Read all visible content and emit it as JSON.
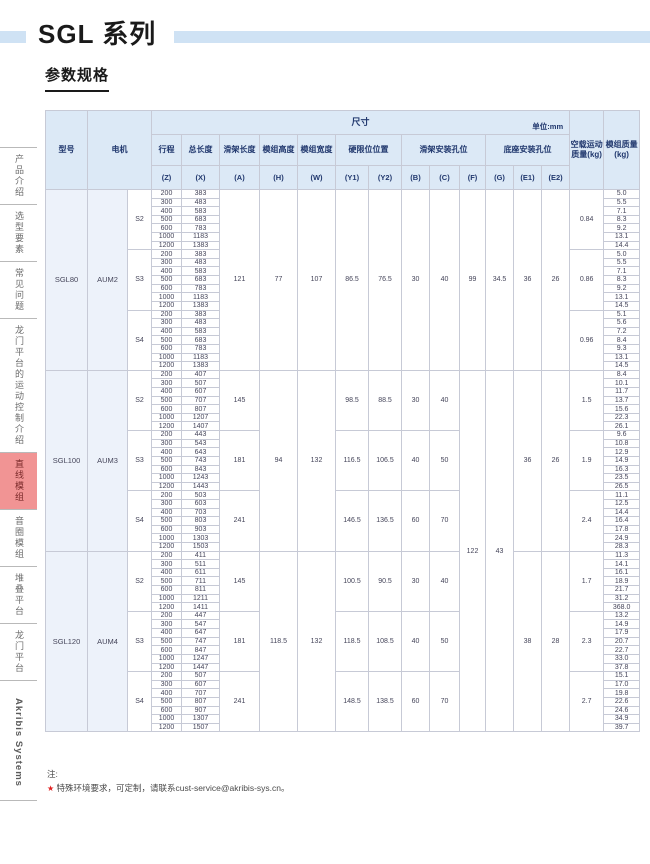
{
  "page": {
    "series_title": "SGL 系列",
    "section_title": "参数规格",
    "brand_vertical": "Akribis  Systems",
    "note_label": "注:",
    "note_star": "★",
    "note_text": " 特殊环境要求，可定制，请联系cust-service@akribis-sys.cn。"
  },
  "sidebar": {
    "items": [
      {
        "label": "产品介绍",
        "active": false
      },
      {
        "label": "选型要素",
        "active": false
      },
      {
        "label": "常见问题",
        "active": false
      },
      {
        "label": "龙门平台的运动控制介绍",
        "active": false
      },
      {
        "label": "直线模组",
        "active": true
      },
      {
        "label": "音圈模组",
        "active": false
      },
      {
        "label": "堆叠平台",
        "active": false
      },
      {
        "label": "龙门平台",
        "active": false
      }
    ]
  },
  "table": {
    "header": {
      "model": "型号",
      "motor": "电机",
      "dims_title": "尺寸",
      "unit": "单位:mm",
      "groups": [
        {
          "label": "行程"
        },
        {
          "label": "总长度"
        },
        {
          "label": "滑架长度"
        },
        {
          "label": "模组高度"
        },
        {
          "label": "模组宽度"
        },
        {
          "label": "硬限位位置"
        },
        {
          "label": "滑架安装孔位"
        },
        {
          "label": "底座安装孔位"
        }
      ],
      "subs": [
        "(Z)",
        "(X)",
        "(A)",
        "(H)",
        "(W)",
        "(Y1)",
        "(Y2)",
        "(B)",
        "(C)",
        "(F)",
        "(G)",
        "(E1)",
        "(E2)"
      ],
      "no_load_label": "空载运动质量(kg)",
      "module_mass_label": "模组质量(kg)"
    },
    "strokes": [
      200,
      300,
      400,
      500,
      600,
      1000,
      1200
    ],
    "sections": [
      {
        "model": "SGL80",
        "motor": "AUM2",
        "dims": {
          "A": {
            "rows": 21,
            "v": "121"
          },
          "H": {
            "rows": 21,
            "v": "77"
          },
          "W": {
            "rows": 21,
            "v": "107"
          },
          "Y1": {
            "rows": 21,
            "v": "86.5"
          },
          "Y2": {
            "rows": 21,
            "v": "76.5"
          },
          "B": {
            "rows": 21,
            "v": "30"
          },
          "C": {
            "rows": 21,
            "v": "40"
          },
          "F": {
            "rows": 21,
            "v": "99"
          },
          "G": {
            "rows": 21,
            "v": "34.5"
          },
          "E1": {
            "rows": 21,
            "v": "36"
          },
          "E2": {
            "rows": 21,
            "v": "26"
          }
        },
        "subs": [
          {
            "s": "S2",
            "X": [
              383,
              483,
              583,
              683,
              783,
              1183,
              1383
            ],
            "no_load": "0.84",
            "mass": [
              "5.0",
              "5.5",
              "7.1",
              "8.3",
              "9.2",
              "13.1",
              "14.4"
            ]
          },
          {
            "s": "S3",
            "X": [
              383,
              483,
              583,
              683,
              783,
              1183,
              1383
            ],
            "no_load": "0.86",
            "mass": [
              "5.0",
              "5.5",
              "7.1",
              "8.3",
              "9.2",
              "13.1",
              "14.5"
            ]
          },
          {
            "s": "S4",
            "X": [
              383,
              483,
              583,
              683,
              783,
              1183,
              1383
            ],
            "no_load": "0.96",
            "mass": [
              "5.1",
              "5.6",
              "7.2",
              "8.4",
              "9.3",
              "13.1",
              "14.5"
            ]
          }
        ]
      },
      {
        "model": "SGL100",
        "motor": "AUM3",
        "dims": {
          "A": {
            "rows": 7,
            "v": [
              "145",
              "181",
              "241"
            ]
          },
          "H": {
            "rows": 21,
            "v": "94"
          },
          "W": {
            "rows": 21,
            "v": "132"
          },
          "Y1": {
            "rows": 7,
            "v": [
              "98.5",
              "116.5",
              "146.5"
            ]
          },
          "Y2": {
            "rows": 7,
            "v": [
              "88.5",
              "106.5",
              "136.5"
            ]
          },
          "B": {
            "rows": 7,
            "v": [
              "30",
              "40",
              "60"
            ]
          },
          "C": {
            "rows": 7,
            "v": [
              "40",
              "50",
              "70"
            ]
          },
          "F": {
            "rows": 42,
            "v": "122"
          },
          "G": {
            "rows": 42,
            "v": "43"
          },
          "E1": {
            "rows": 21,
            "v": "36"
          },
          "E2": {
            "rows": 21,
            "v": "26"
          }
        },
        "subs": [
          {
            "s": "S2",
            "X": [
              407,
              507,
              607,
              707,
              807,
              1207,
              1407
            ],
            "no_load": "1.5",
            "mass": [
              "8.4",
              "10.1",
              "11.7",
              "13.7",
              "15.6",
              "22.3",
              "26.1"
            ]
          },
          {
            "s": "S3",
            "X": [
              443,
              543,
              643,
              743,
              843,
              1243,
              1443
            ],
            "no_load": "1.9",
            "mass": [
              "9.6",
              "10.8",
              "12.9",
              "14.9",
              "16.3",
              "23.5",
              "26.5"
            ]
          },
          {
            "s": "S4",
            "X": [
              503,
              603,
              703,
              803,
              903,
              1303,
              1503
            ],
            "no_load": "2.4",
            "mass": [
              "11.1",
              "12.5",
              "14.4",
              "16.4",
              "17.8",
              "24.9",
              "28.3"
            ]
          }
        ]
      },
      {
        "model": "SGL120",
        "motor": "AUM4",
        "dims": {
          "A": {
            "rows": 7,
            "v": [
              "145",
              "181",
              "241"
            ]
          },
          "H": {
            "rows": 21,
            "v": "118.5"
          },
          "W": {
            "rows": 21,
            "v": "132"
          },
          "Y1": {
            "rows": 7,
            "v": [
              "100.5",
              "118.5",
              "148.5"
            ]
          },
          "Y2": {
            "rows": 7,
            "v": [
              "90.5",
              "108.5",
              "138.5"
            ]
          },
          "B": {
            "rows": 7,
            "v": [
              "30",
              "40",
              "60"
            ]
          },
          "C": {
            "rows": 7,
            "v": [
              "40",
              "50",
              "70"
            ]
          },
          "E1": {
            "rows": 21,
            "v": "38"
          },
          "E2": {
            "rows": 21,
            "v": "28"
          }
        },
        "subs": [
          {
            "s": "S2",
            "X": [
              411,
              511,
              611,
              711,
              811,
              1211,
              1411
            ],
            "no_load": "1.7",
            "mass": [
              "11.3",
              "14.1",
              "16.1",
              "18.9",
              "21.7",
              "31.2",
              "368.0"
            ]
          },
          {
            "s": "S3",
            "X": [
              447,
              547,
              647,
              747,
              847,
              1247,
              1447
            ],
            "no_load": "2.3",
            "mass": [
              "13.2",
              "14.9",
              "17.9",
              "20.7",
              "22.7",
              "33.0",
              "37.8"
            ]
          },
          {
            "s": "S4",
            "X": [
              507,
              607,
              707,
              807,
              907,
              1307,
              1507
            ],
            "no_load": "2.7",
            "mass": [
              "15.1",
              "17.0",
              "19.8",
              "22.6",
              "24.6",
              "34.9",
              "39.7"
            ]
          }
        ]
      }
    ]
  },
  "colors": {
    "band_blue": "#cfe2f4",
    "header_bg": "#dce9f6",
    "header_text": "#21386e",
    "active_tab_bg": "#f19494",
    "note_star_red": "#e02020",
    "table_border": "#7e8fc0"
  }
}
